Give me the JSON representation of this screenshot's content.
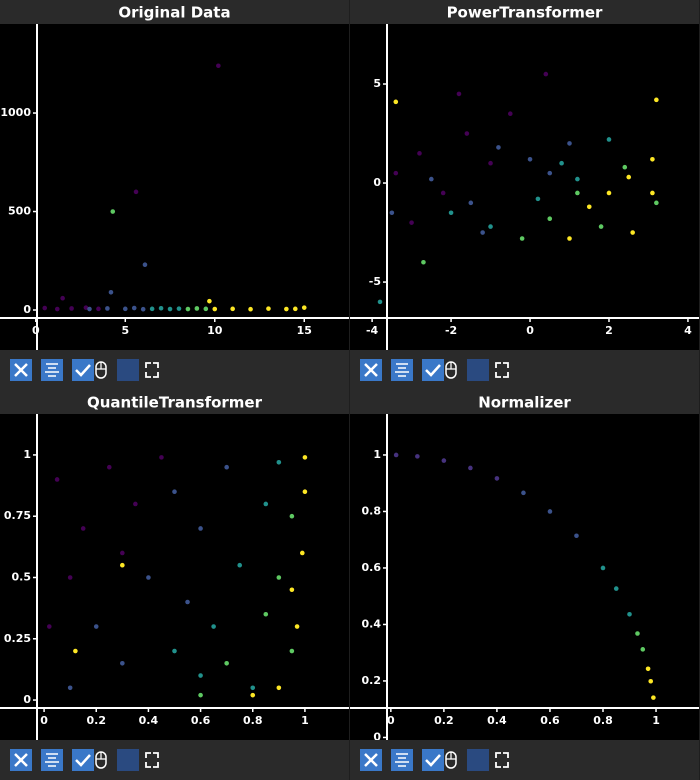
{
  "chart_data": [
    {
      "type": "scatter",
      "title": "Original Data",
      "xlim": [
        -2,
        17.5
      ],
      "ylim": [
        -203,
        1452
      ],
      "xticks": [
        0,
        5,
        10,
        15
      ],
      "yticks": [
        0,
        500,
        1000
      ],
      "series": [
        {
          "color": "#440154",
          "x": [
            0.5,
            1.2,
            2,
            2.8,
            3.5,
            10.2,
            5.6,
            1.5
          ],
          "values": [
            10,
            5,
            8,
            12,
            6,
            1240,
            600,
            60
          ]
        },
        {
          "color": "#3b528b",
          "x": [
            3,
            4,
            4.2,
            5,
            5.5,
            6,
            6.1
          ],
          "values": [
            5,
            8,
            90,
            6,
            10,
            4,
            230
          ]
        },
        {
          "color": "#21918c",
          "x": [
            6.5,
            7,
            7.5,
            8
          ],
          "values": [
            6,
            9,
            5,
            7
          ]
        },
        {
          "color": "#5ec962",
          "x": [
            8.5,
            9,
            9.5,
            4.3
          ],
          "values": [
            5,
            8,
            6,
            500
          ]
        },
        {
          "color": "#fde725",
          "x": [
            10,
            11,
            12,
            13,
            14,
            15,
            9.7,
            14.5
          ],
          "values": [
            5,
            6,
            4,
            7,
            5,
            12,
            45,
            6
          ]
        }
      ]
    },
    {
      "type": "scatter",
      "title": "PowerTransformer",
      "xlim": [
        -4.56,
        4.28
      ],
      "ylim": [
        -8.43,
        8.03
      ],
      "xticks": [
        -4,
        -2,
        0,
        2,
        4
      ],
      "yticks": [
        -5,
        0,
        5
      ],
      "series": [
        {
          "color": "#440154",
          "x": [
            -3.4,
            -2.8,
            -2.2,
            -1.6,
            -1.0,
            -0.5,
            -1.8,
            -3.0,
            0.4
          ],
          "values": [
            0.5,
            1.5,
            -0.5,
            2.5,
            1.0,
            3.5,
            4.5,
            -2,
            5.5
          ]
        },
        {
          "color": "#3b528b",
          "x": [
            -2.5,
            -1.5,
            -0.8,
            0,
            0.5,
            -1.2,
            1.0,
            -3.5
          ],
          "values": [
            0.2,
            -1.0,
            1.8,
            1.2,
            0.5,
            -2.5,
            2.0,
            -1.5
          ]
        },
        {
          "color": "#21918c",
          "x": [
            -2.0,
            -1.0,
            0.2,
            0.8,
            1.2,
            -3.8,
            2.0
          ],
          "values": [
            -1.5,
            -2.2,
            -0.8,
            1.0,
            0.2,
            -6.0,
            2.2
          ]
        },
        {
          "color": "#5ec962",
          "x": [
            0.5,
            1.2,
            1.8,
            -0.2,
            2.4,
            -2.7,
            3.2
          ],
          "values": [
            -1.8,
            -0.5,
            -2.2,
            -2.8,
            0.8,
            -4.0,
            -1.0
          ]
        },
        {
          "color": "#fde725",
          "x": [
            1.5,
            2.0,
            2.5,
            3.1,
            3.1,
            1.0,
            -3.4,
            3.2,
            2.6
          ],
          "values": [
            -1.2,
            -0.5,
            0.3,
            1.2,
            -0.5,
            -2.8,
            4.1,
            4.2,
            -2.5
          ]
        }
      ]
    },
    {
      "type": "scatter",
      "title": "QuantileTransformer",
      "xlim": [
        -0.169,
        1.169
      ],
      "ylim": [
        -0.163,
        1.167
      ],
      "xticks": [
        0,
        0.2,
        0.4,
        0.6,
        0.8,
        1
      ],
      "yticks": [
        0,
        0.25,
        0.5,
        0.75,
        1
      ],
      "series": [
        {
          "color": "#440154",
          "x": [
            0.05,
            0.15,
            0.25,
            0.1,
            0.35,
            0.3,
            0.02,
            0.45
          ],
          "values": [
            0.9,
            0.7,
            0.95,
            0.5,
            0.8,
            0.6,
            0.3,
            0.99
          ]
        },
        {
          "color": "#3b528b",
          "x": [
            0.2,
            0.4,
            0.5,
            0.55,
            0.6,
            0.3,
            0.7,
            0.1
          ],
          "values": [
            0.3,
            0.5,
            0.85,
            0.4,
            0.7,
            0.15,
            0.95,
            0.05
          ]
        },
        {
          "color": "#21918c",
          "x": [
            0.5,
            0.65,
            0.75,
            0.85,
            0.8,
            0.9,
            0.6
          ],
          "values": [
            0.2,
            0.3,
            0.55,
            0.8,
            0.05,
            0.97,
            0.1
          ]
        },
        {
          "color": "#5ec962",
          "x": [
            0.7,
            0.85,
            0.9,
            0.95,
            0.6,
            0.95
          ],
          "values": [
            0.15,
            0.35,
            0.5,
            0.2,
            0.02,
            0.75
          ]
        },
        {
          "color": "#fde725",
          "x": [
            0.9,
            0.97,
            0.99,
            1.0,
            1.0,
            0.95,
            0.8,
            0.12,
            0.3
          ],
          "values": [
            0.05,
            0.3,
            0.6,
            0.85,
            0.99,
            0.45,
            0.02,
            0.2,
            0.55
          ]
        }
      ]
    },
    {
      "type": "scatter",
      "title": "Normalizer",
      "xlim": [
        -0.154,
        1.162
      ],
      "ylim": [
        -0.009,
        1.145
      ],
      "xticks": [
        0,
        0.2,
        0.4,
        0.6,
        0.8,
        1
      ],
      "yticks": [
        0,
        0.2,
        0.4,
        0.6,
        0.8,
        1
      ],
      "series": [
        {
          "color": "#46327e",
          "x": [
            0.02,
            0.1,
            0.2,
            0.3,
            0.4
          ],
          "values": [
            1.0,
            0.995,
            0.98,
            0.954,
            0.917
          ]
        },
        {
          "color": "#3b528b",
          "x": [
            0.5,
            0.6,
            0.7
          ],
          "values": [
            0.866,
            0.8,
            0.714
          ]
        },
        {
          "color": "#21918c",
          "x": [
            0.8,
            0.85,
            0.9
          ],
          "values": [
            0.6,
            0.527,
            0.436
          ]
        },
        {
          "color": "#5ec962",
          "x": [
            0.93,
            0.95
          ],
          "values": [
            0.368,
            0.312
          ]
        },
        {
          "color": "#fde725",
          "x": [
            0.97,
            0.98,
            0.99
          ],
          "values": [
            0.243,
            0.199,
            0.141
          ]
        }
      ]
    }
  ]
}
